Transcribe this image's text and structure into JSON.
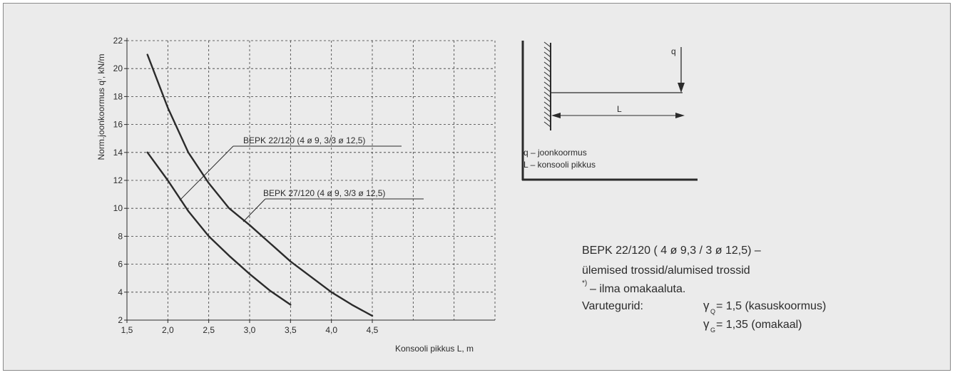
{
  "chart_data": {
    "type": "line",
    "title": "",
    "xlabel": "Konsooli pikkus L, m",
    "ylabel": "Norm.joonkoormus q⁾, kN/m",
    "xlim": [
      1.5,
      6.0
    ],
    "ylim": [
      2,
      22
    ],
    "x_ticks": [
      "1,5",
      "2,0",
      "2,5",
      "3,0",
      "3,5",
      "4,0",
      "4,5"
    ],
    "y_ticks": [
      "2",
      "4",
      "6",
      "8",
      "10",
      "12",
      "14",
      "16",
      "18",
      "20",
      "22"
    ],
    "grid": true,
    "series": [
      {
        "name": "BEPK 22/120 (4 ø 9, 3/3 ø 12,5)",
        "x": [
          1.75,
          2.0,
          2.25,
          2.5,
          2.75,
          3.0,
          3.25,
          3.5
        ],
        "y": [
          14.0,
          12.0,
          9.8,
          8.0,
          6.6,
          5.3,
          4.1,
          3.1
        ]
      },
      {
        "name": "BEPK 27/120 (4 ø 9, 3/3 ø 12,5)",
        "x": [
          1.75,
          2.0,
          2.25,
          2.5,
          2.75,
          3.0,
          3.5,
          4.0,
          4.25,
          4.5
        ],
        "y": [
          21.0,
          17.2,
          14.0,
          11.8,
          10.0,
          8.8,
          6.2,
          4.0,
          3.1,
          2.3
        ]
      }
    ]
  },
  "diagram": {
    "load_label": "q",
    "length_label": "L",
    "legend_q": "q – joonkoormus",
    "legend_l": "L – konsooli pikkus"
  },
  "notes": {
    "line1": "BEPK 22/120 ( 4 ø 9,3 / 3 ø 12,5) –",
    "line2": "ülemised trossid/alumised trossid",
    "line3_sup": "*)",
    "line3": " – ilma omakaaluta.",
    "factors_label": "Varutegurid:",
    "gamma_symbol": "γ",
    "gq_sub": "Q",
    "gq_text": " = 1,5 (kasuskoormus)",
    "gg_sub": "G",
    "gg_text": " = 1,35 (omakaal)"
  }
}
